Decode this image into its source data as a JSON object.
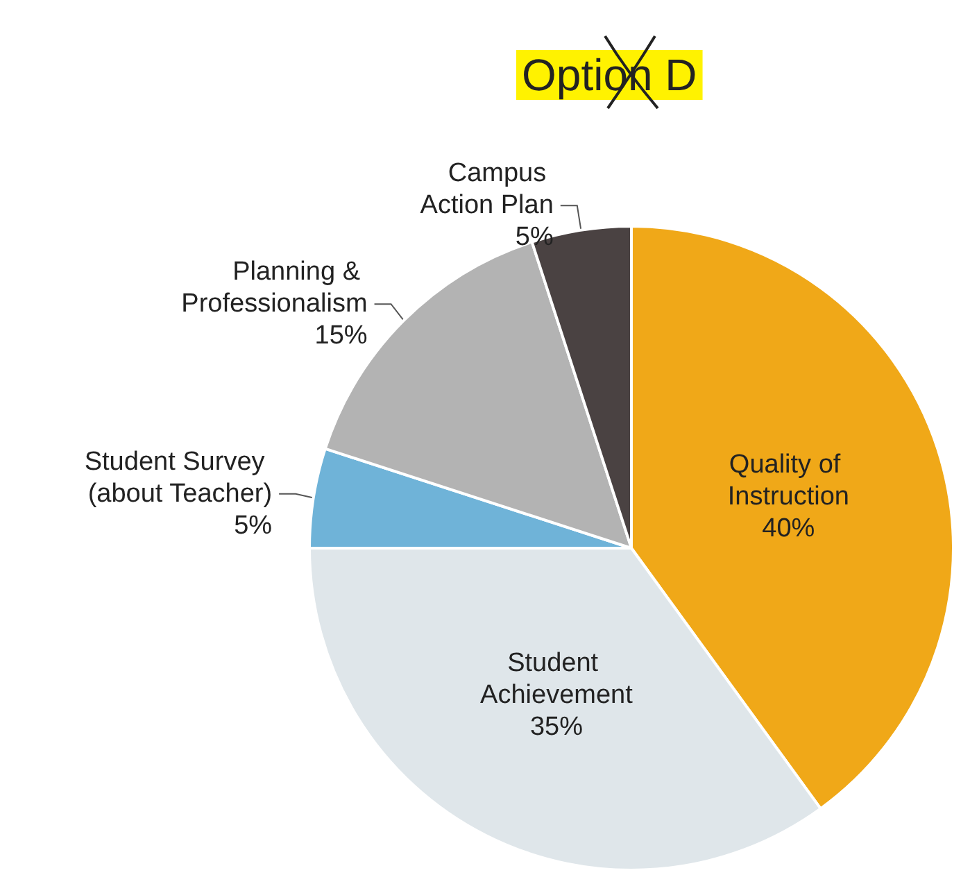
{
  "chart_data": {
    "type": "pie",
    "title": "Option D",
    "categories": [
      "Quality of Instruction",
      "Student Achievement",
      "Student Survey (about Teacher)",
      "Planning & Professionalism",
      "Campus Action Plan"
    ],
    "values": [
      40,
      35,
      5,
      15,
      5
    ],
    "colors": [
      "#f0a818",
      "#dfe6ea",
      "#6fb3d8",
      "#b3b3b3",
      "#4a4242"
    ],
    "value_labels": [
      "40%",
      "35%",
      "5%",
      "15%",
      "5%"
    ]
  }
}
